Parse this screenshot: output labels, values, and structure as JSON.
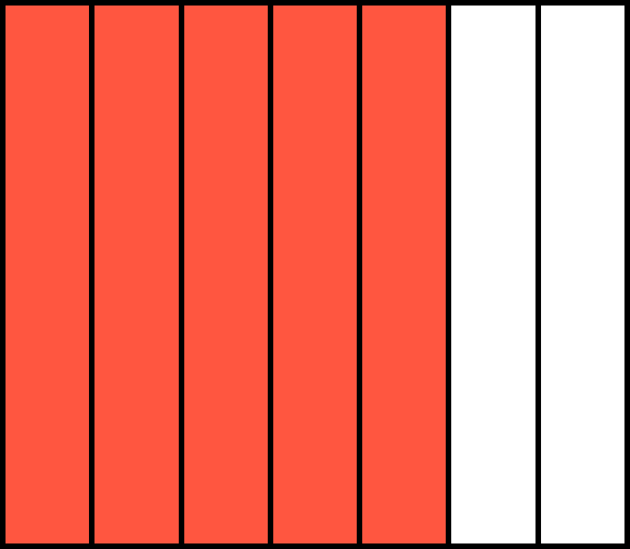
{
  "fraction_bar": {
    "total_parts": 7,
    "shaded_parts": 5,
    "shaded_fraction": 0.7143,
    "colors": {
      "shaded": "#FF5640",
      "unshaded": "#FFFFFF",
      "outline": "#000000"
    }
  }
}
